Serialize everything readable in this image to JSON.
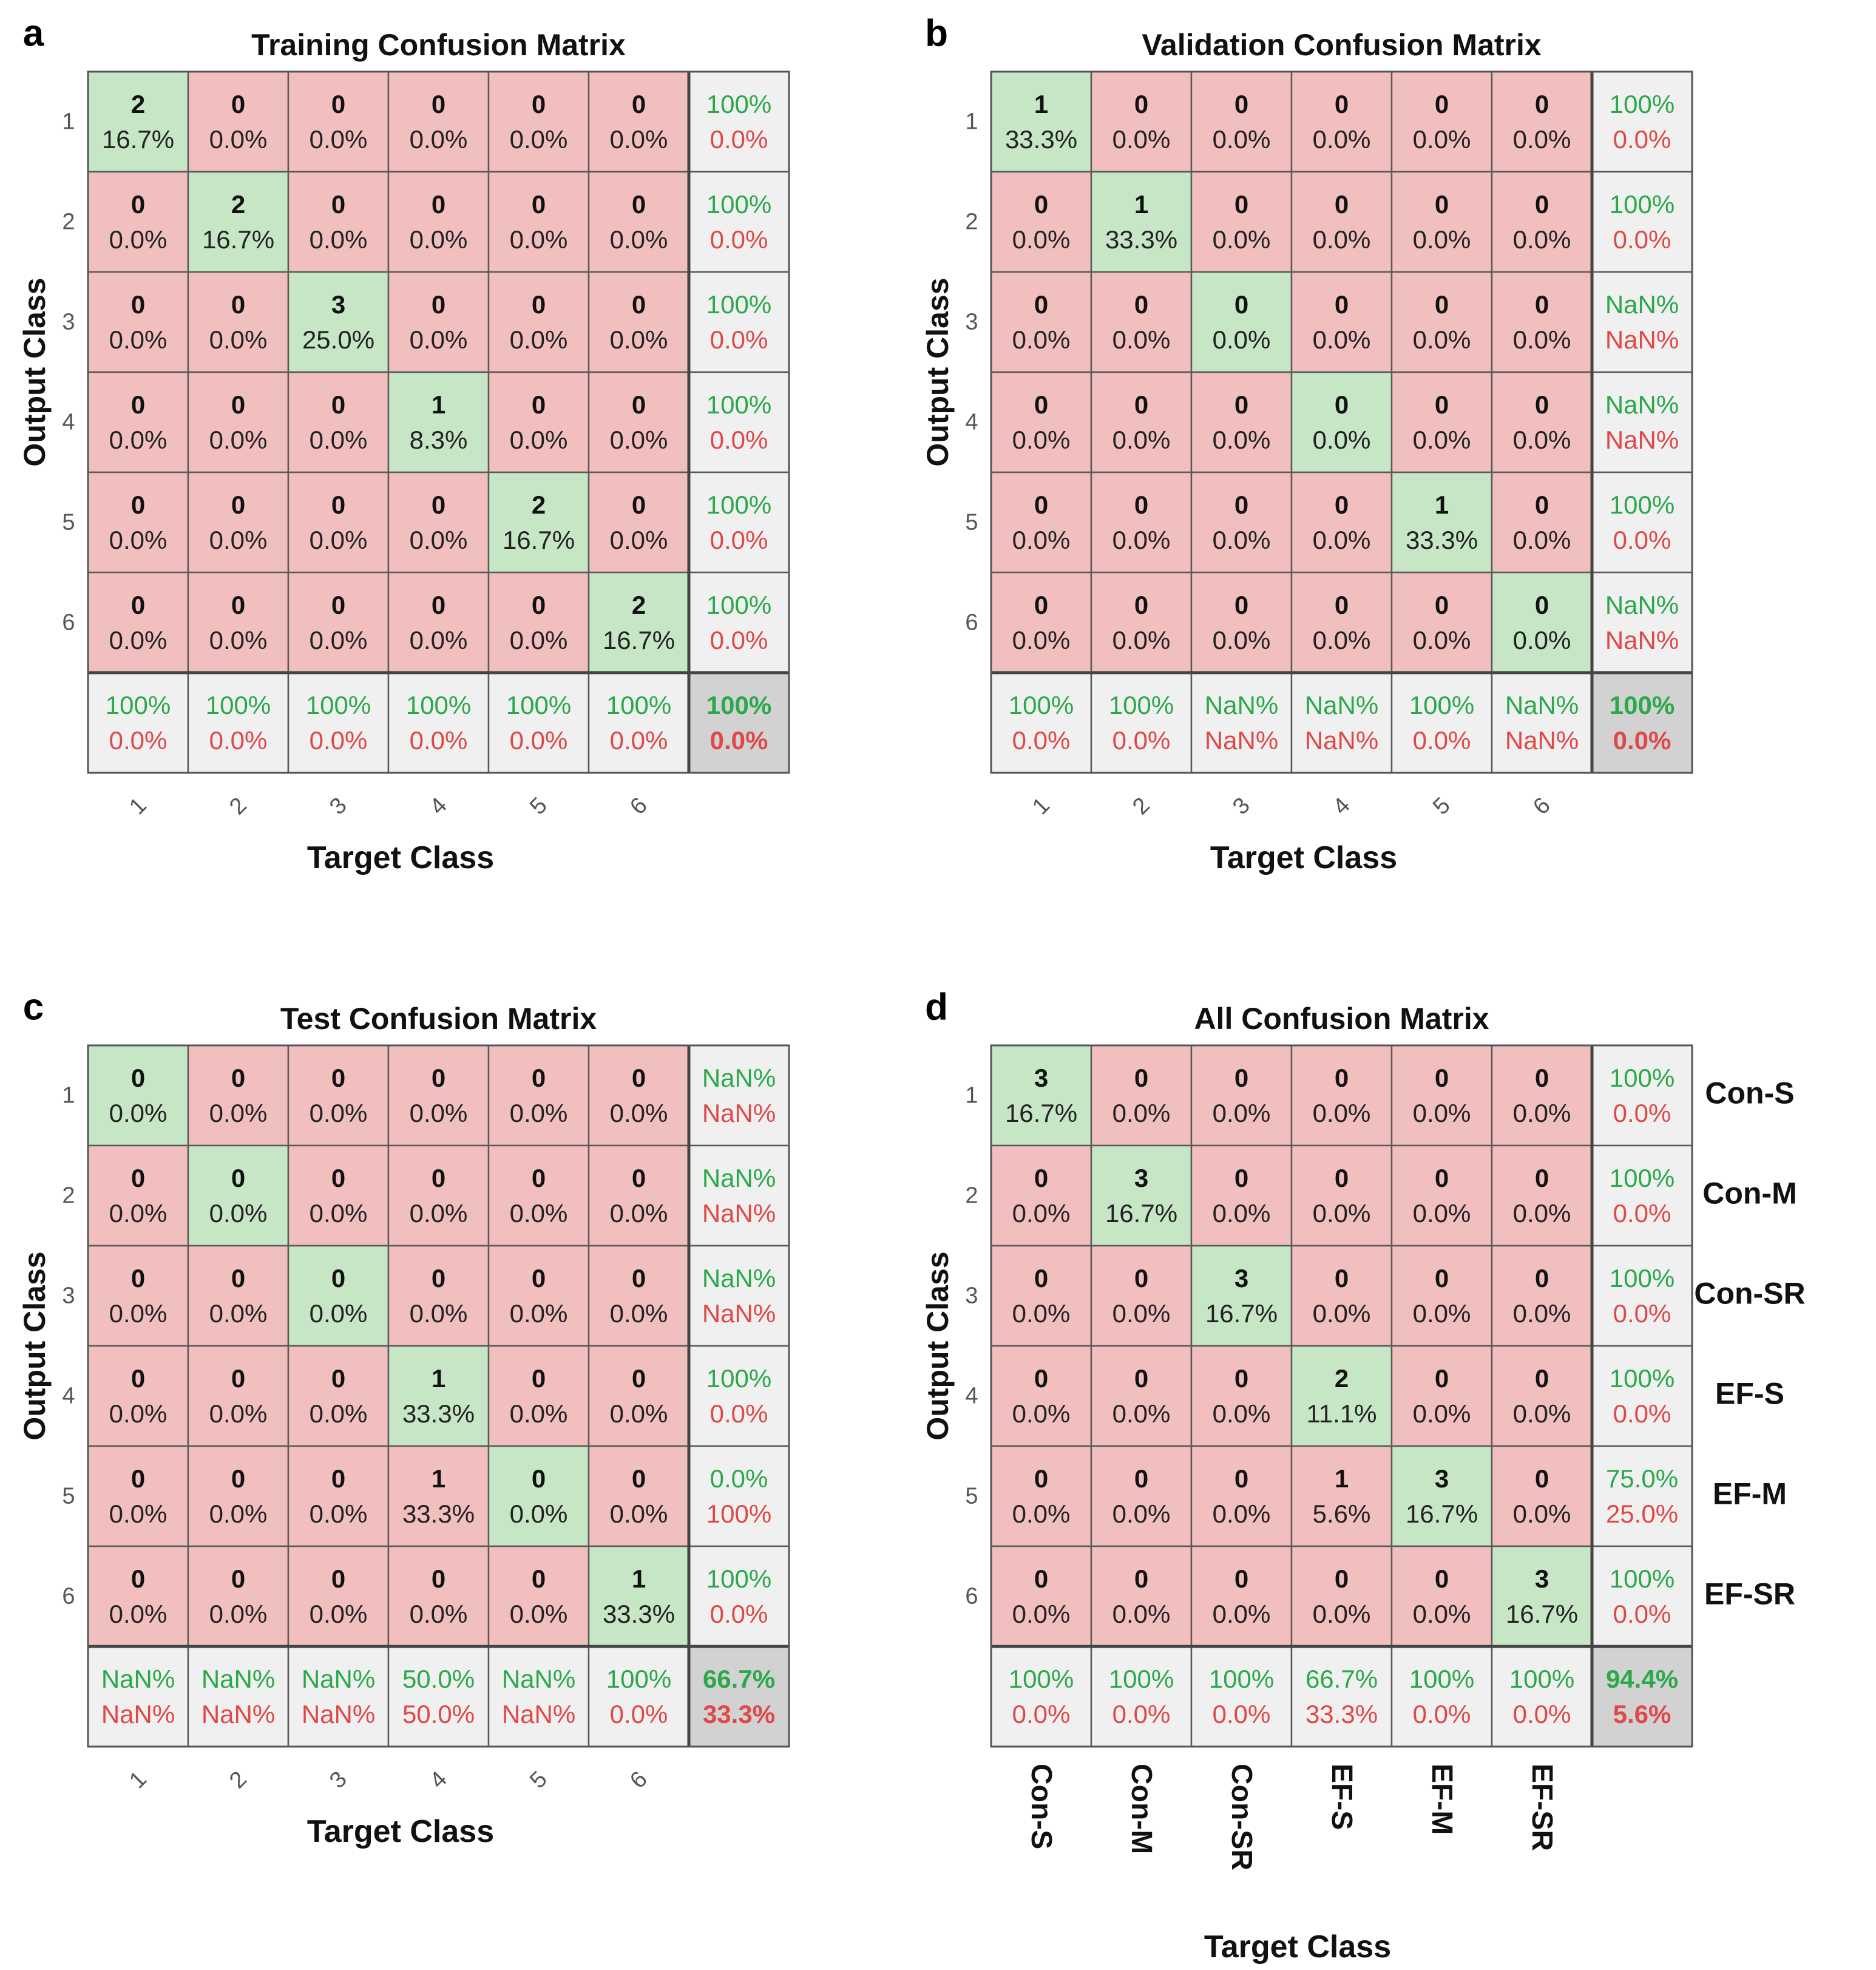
{
  "colors": {
    "correct_fill": "#c6e6c6",
    "wrong_fill": "#f2bfbf",
    "summary_fill": "#f0f0f0",
    "overall_fill": "#d2d2d2",
    "grid_stroke": "#5a5a5a",
    "pct_green": "#2aa84a",
    "pct_red": "#e04848",
    "text": "#222222"
  },
  "chart_data": [
    {
      "type": "confusion_matrix",
      "panel_label": "a",
      "title": "Training Confusion Matrix",
      "xlabel": "Target Class",
      "ylabel": "Output Class",
      "row_labels": [
        "1",
        "2",
        "3",
        "4",
        "5",
        "6"
      ],
      "col_labels": [
        "1",
        "2",
        "3",
        "4",
        "5",
        "6"
      ],
      "col_labels_style": "tick",
      "class_names": [],
      "counts": [
        [
          2,
          0,
          0,
          0,
          0,
          0
        ],
        [
          0,
          2,
          0,
          0,
          0,
          0
        ],
        [
          0,
          0,
          3,
          0,
          0,
          0
        ],
        [
          0,
          0,
          0,
          1,
          0,
          0
        ],
        [
          0,
          0,
          0,
          0,
          2,
          0
        ],
        [
          0,
          0,
          0,
          0,
          0,
          2
        ]
      ],
      "percents": [
        [
          "16.7%",
          "0.0%",
          "0.0%",
          "0.0%",
          "0.0%",
          "0.0%"
        ],
        [
          "0.0%",
          "16.7%",
          "0.0%",
          "0.0%",
          "0.0%",
          "0.0%"
        ],
        [
          "0.0%",
          "0.0%",
          "25.0%",
          "0.0%",
          "0.0%",
          "0.0%"
        ],
        [
          "0.0%",
          "0.0%",
          "0.0%",
          "8.3%",
          "0.0%",
          "0.0%"
        ],
        [
          "0.0%",
          "0.0%",
          "0.0%",
          "0.0%",
          "16.7%",
          "0.0%"
        ],
        [
          "0.0%",
          "0.0%",
          "0.0%",
          "0.0%",
          "0.0%",
          "16.7%"
        ]
      ],
      "row_summary": [
        [
          "100%",
          "0.0%"
        ],
        [
          "100%",
          "0.0%"
        ],
        [
          "100%",
          "0.0%"
        ],
        [
          "100%",
          "0.0%"
        ],
        [
          "100%",
          "0.0%"
        ],
        [
          "100%",
          "0.0%"
        ]
      ],
      "col_summary": [
        [
          "100%",
          "0.0%"
        ],
        [
          "100%",
          "0.0%"
        ],
        [
          "100%",
          "0.0%"
        ],
        [
          "100%",
          "0.0%"
        ],
        [
          "100%",
          "0.0%"
        ],
        [
          "100%",
          "0.0%"
        ]
      ],
      "overall": [
        "100%",
        "0.0%"
      ]
    },
    {
      "type": "confusion_matrix",
      "panel_label": "b",
      "title": "Validation Confusion Matrix",
      "xlabel": "Target Class",
      "ylabel": "Output Class",
      "row_labels": [
        "1",
        "2",
        "3",
        "4",
        "5",
        "6"
      ],
      "col_labels": [
        "1",
        "2",
        "3",
        "4",
        "5",
        "6"
      ],
      "col_labels_style": "tick",
      "class_names": [],
      "counts": [
        [
          1,
          0,
          0,
          0,
          0,
          0
        ],
        [
          0,
          1,
          0,
          0,
          0,
          0
        ],
        [
          0,
          0,
          0,
          0,
          0,
          0
        ],
        [
          0,
          0,
          0,
          0,
          0,
          0
        ],
        [
          0,
          0,
          0,
          0,
          1,
          0
        ],
        [
          0,
          0,
          0,
          0,
          0,
          0
        ]
      ],
      "percents": [
        [
          "33.3%",
          "0.0%",
          "0.0%",
          "0.0%",
          "0.0%",
          "0.0%"
        ],
        [
          "0.0%",
          "33.3%",
          "0.0%",
          "0.0%",
          "0.0%",
          "0.0%"
        ],
        [
          "0.0%",
          "0.0%",
          "0.0%",
          "0.0%",
          "0.0%",
          "0.0%"
        ],
        [
          "0.0%",
          "0.0%",
          "0.0%",
          "0.0%",
          "0.0%",
          "0.0%"
        ],
        [
          "0.0%",
          "0.0%",
          "0.0%",
          "0.0%",
          "33.3%",
          "0.0%"
        ],
        [
          "0.0%",
          "0.0%",
          "0.0%",
          "0.0%",
          "0.0%",
          "0.0%"
        ]
      ],
      "row_summary": [
        [
          "100%",
          "0.0%"
        ],
        [
          "100%",
          "0.0%"
        ],
        [
          "NaN%",
          "NaN%"
        ],
        [
          "NaN%",
          "NaN%"
        ],
        [
          "100%",
          "0.0%"
        ],
        [
          "NaN%",
          "NaN%"
        ]
      ],
      "col_summary": [
        [
          "100%",
          "0.0%"
        ],
        [
          "100%",
          "0.0%"
        ],
        [
          "NaN%",
          "NaN%"
        ],
        [
          "NaN%",
          "NaN%"
        ],
        [
          "100%",
          "0.0%"
        ],
        [
          "NaN%",
          "NaN%"
        ]
      ],
      "overall": [
        "100%",
        "0.0%"
      ]
    },
    {
      "type": "confusion_matrix",
      "panel_label": "c",
      "title": "Test Confusion Matrix",
      "xlabel": "Target Class",
      "ylabel": "Output Class",
      "row_labels": [
        "1",
        "2",
        "3",
        "4",
        "5",
        "6"
      ],
      "col_labels": [
        "1",
        "2",
        "3",
        "4",
        "5",
        "6"
      ],
      "col_labels_style": "tick",
      "class_names": [],
      "counts": [
        [
          0,
          0,
          0,
          0,
          0,
          0
        ],
        [
          0,
          0,
          0,
          0,
          0,
          0
        ],
        [
          0,
          0,
          0,
          0,
          0,
          0
        ],
        [
          0,
          0,
          0,
          1,
          0,
          0
        ],
        [
          0,
          0,
          0,
          1,
          0,
          0
        ],
        [
          0,
          0,
          0,
          0,
          0,
          1
        ]
      ],
      "percents": [
        [
          "0.0%",
          "0.0%",
          "0.0%",
          "0.0%",
          "0.0%",
          "0.0%"
        ],
        [
          "0.0%",
          "0.0%",
          "0.0%",
          "0.0%",
          "0.0%",
          "0.0%"
        ],
        [
          "0.0%",
          "0.0%",
          "0.0%",
          "0.0%",
          "0.0%",
          "0.0%"
        ],
        [
          "0.0%",
          "0.0%",
          "0.0%",
          "33.3%",
          "0.0%",
          "0.0%"
        ],
        [
          "0.0%",
          "0.0%",
          "0.0%",
          "33.3%",
          "0.0%",
          "0.0%"
        ],
        [
          "0.0%",
          "0.0%",
          "0.0%",
          "0.0%",
          "0.0%",
          "33.3%"
        ]
      ],
      "row_summary": [
        [
          "NaN%",
          "NaN%"
        ],
        [
          "NaN%",
          "NaN%"
        ],
        [
          "NaN%",
          "NaN%"
        ],
        [
          "100%",
          "0.0%"
        ],
        [
          "0.0%",
          "100%"
        ],
        [
          "100%",
          "0.0%"
        ]
      ],
      "col_summary": [
        [
          "NaN%",
          "NaN%"
        ],
        [
          "NaN%",
          "NaN%"
        ],
        [
          "NaN%",
          "NaN%"
        ],
        [
          "50.0%",
          "50.0%"
        ],
        [
          "NaN%",
          "NaN%"
        ],
        [
          "100%",
          "0.0%"
        ]
      ],
      "overall": [
        "66.7%",
        "33.3%"
      ]
    },
    {
      "type": "confusion_matrix",
      "panel_label": "d",
      "title": "All Confusion Matrix",
      "xlabel": "Target Class",
      "ylabel": "Output Class",
      "row_labels": [
        "1",
        "2",
        "3",
        "4",
        "5",
        "6"
      ],
      "col_labels": [
        "Con-S",
        "Con-M",
        "Con-SR",
        "EF-S",
        "EF-M",
        "EF-SR"
      ],
      "col_labels_style": "name",
      "class_names": [
        "Con-S",
        "Con-M",
        "Con-SR",
        "EF-S",
        "EF-M",
        "EF-SR"
      ],
      "counts": [
        [
          3,
          0,
          0,
          0,
          0,
          0
        ],
        [
          0,
          3,
          0,
          0,
          0,
          0
        ],
        [
          0,
          0,
          3,
          0,
          0,
          0
        ],
        [
          0,
          0,
          0,
          2,
          0,
          0
        ],
        [
          0,
          0,
          0,
          1,
          3,
          0
        ],
        [
          0,
          0,
          0,
          0,
          0,
          3
        ]
      ],
      "percents": [
        [
          "16.7%",
          "0.0%",
          "0.0%",
          "0.0%",
          "0.0%",
          "0.0%"
        ],
        [
          "0.0%",
          "16.7%",
          "0.0%",
          "0.0%",
          "0.0%",
          "0.0%"
        ],
        [
          "0.0%",
          "0.0%",
          "16.7%",
          "0.0%",
          "0.0%",
          "0.0%"
        ],
        [
          "0.0%",
          "0.0%",
          "0.0%",
          "11.1%",
          "0.0%",
          "0.0%"
        ],
        [
          "0.0%",
          "0.0%",
          "0.0%",
          "5.6%",
          "16.7%",
          "0.0%"
        ],
        [
          "0.0%",
          "0.0%",
          "0.0%",
          "0.0%",
          "0.0%",
          "16.7%"
        ]
      ],
      "row_summary": [
        [
          "100%",
          "0.0%"
        ],
        [
          "100%",
          "0.0%"
        ],
        [
          "100%",
          "0.0%"
        ],
        [
          "100%",
          "0.0%"
        ],
        [
          "75.0%",
          "25.0%"
        ],
        [
          "100%",
          "0.0%"
        ]
      ],
      "col_summary": [
        [
          "100%",
          "0.0%"
        ],
        [
          "100%",
          "0.0%"
        ],
        [
          "100%",
          "0.0%"
        ],
        [
          "66.7%",
          "33.3%"
        ],
        [
          "100%",
          "0.0%"
        ],
        [
          "100%",
          "0.0%"
        ]
      ],
      "overall": [
        "94.4%",
        "5.6%"
      ]
    }
  ]
}
